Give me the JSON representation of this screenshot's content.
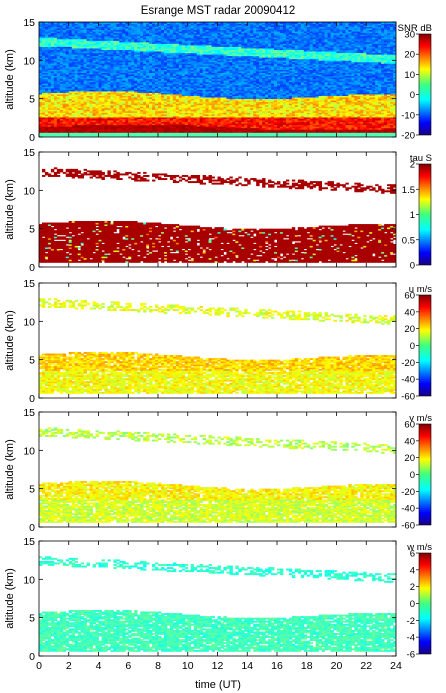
{
  "figure_title": "Esrange MST radar 20090412",
  "chart_data": {
    "type": "heatmap",
    "title": "Esrange MST radar 20090412",
    "xlabel": "time (UT)",
    "x_ticks": [
      "0",
      "2",
      "4",
      "6",
      "8",
      "10",
      "12",
      "14",
      "16",
      "18",
      "20",
      "22",
      "24"
    ],
    "xlim": [
      0,
      24
    ],
    "colormap": "jet",
    "panels": [
      {
        "id": "snr",
        "ylabel": "altitude (km)",
        "y_ticks": [
          "0",
          "5",
          "10",
          "15"
        ],
        "ylim": [
          0,
          15
        ],
        "colorbar_label": "SNR dB",
        "colorbar_ticks": [
          "30",
          "20",
          "10",
          "0",
          "-10",
          "-20"
        ],
        "clim": [
          -20,
          30
        ]
      },
      {
        "id": "tau",
        "ylabel": "altitude (km)",
        "y_ticks": [
          "0",
          "5",
          "10",
          "15"
        ],
        "ylim": [
          0,
          15
        ],
        "colorbar_label": "tau S",
        "colorbar_ticks": [
          "2",
          "1.5",
          "1",
          "0.5",
          "0"
        ],
        "clim": [
          0,
          2
        ]
      },
      {
        "id": "u",
        "ylabel": "altitude (km)",
        "y_ticks": [
          "0",
          "5",
          "10",
          "15"
        ],
        "ylim": [
          0,
          15
        ],
        "colorbar_label": "u m/s",
        "colorbar_ticks": [
          "60",
          "40",
          "20",
          "0",
          "-20",
          "-40",
          "-60"
        ],
        "clim": [
          -60,
          60
        ]
      },
      {
        "id": "v",
        "ylabel": "altitude (km)",
        "y_ticks": [
          "0",
          "5",
          "10",
          "15"
        ],
        "ylim": [
          0,
          15
        ],
        "colorbar_label": "v m/s",
        "colorbar_ticks": [
          "60",
          "40",
          "20",
          "0",
          "-20",
          "-40",
          "-60"
        ],
        "clim": [
          -60,
          60
        ]
      },
      {
        "id": "w",
        "ylabel": "altitude (km)",
        "y_ticks": [
          "0",
          "5",
          "10",
          "15"
        ],
        "ylim": [
          0,
          15
        ],
        "colorbar_label": "w m/s",
        "colorbar_ticks": [
          "6",
          "4",
          "2",
          "0",
          "-2",
          "-4",
          "-6"
        ],
        "clim": [
          -6,
          6
        ]
      }
    ]
  }
}
